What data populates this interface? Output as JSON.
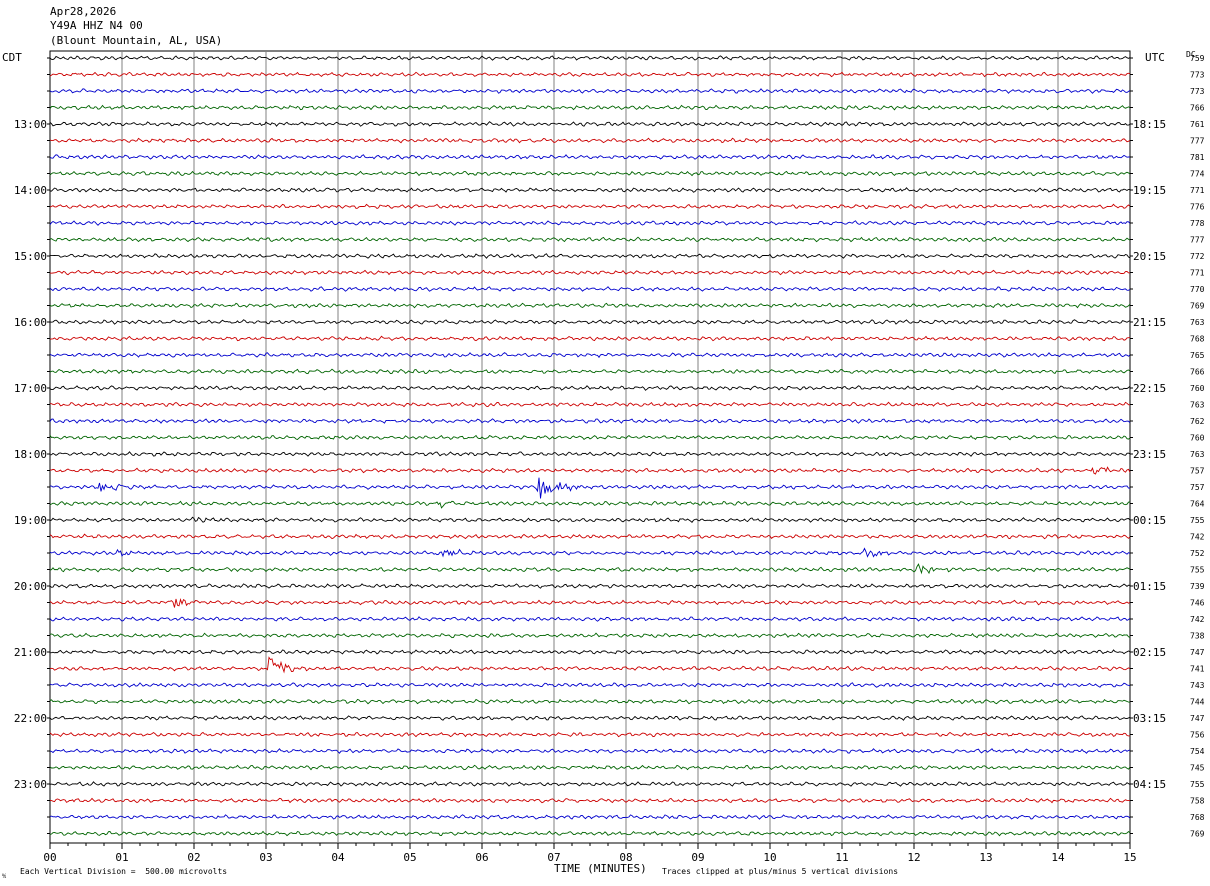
{
  "header": {
    "date": "Apr28,2026",
    "station": "Y49A HHZ N4 00",
    "location": "(Blount Mountain, AL, USA)"
  },
  "left_tz": "CDT",
  "right_tz": "UTC",
  "dc_label": "DC",
  "footer": {
    "scale_note": "Each Vertical Division =  500.00 microvolts",
    "clip_note": "Traces clipped at plus/minus 5 vertical divisions",
    "corner_mark": "⅍"
  },
  "colors": {
    "trace_cycle": [
      "#000000",
      "#cc0000",
      "#0000cc",
      "#006400"
    ],
    "grid": "#808080"
  },
  "chart_data": {
    "type": "line",
    "xlabel": "TIME (MINUTES)",
    "xlim": [
      0,
      15
    ],
    "x_ticks": [
      "00",
      "01",
      "02",
      "03",
      "04",
      "05",
      "06",
      "07",
      "08",
      "09",
      "10",
      "11",
      "12",
      "13",
      "14",
      "15"
    ],
    "left_hour_labels": [
      "13:00",
      "14:00",
      "15:00",
      "16:00",
      "17:00",
      "18:00",
      "19:00",
      "20:00",
      "21:00",
      "22:00",
      "23:00"
    ],
    "right_hour_labels": [
      "18:15",
      "19:15",
      "20:15",
      "21:15",
      "22:15",
      "23:15",
      "00:15",
      "01:15",
      "02:15",
      "03:15",
      "04:15"
    ],
    "dc_values": [
      759,
      773,
      773,
      766,
      761,
      777,
      781,
      774,
      771,
      776,
      778,
      777,
      772,
      771,
      770,
      769,
      763,
      768,
      765,
      766,
      760,
      763,
      762,
      760,
      763,
      757,
      757,
      764,
      755,
      742,
      752,
      755,
      739,
      746,
      742,
      738,
      747,
      741,
      743,
      744,
      747,
      756,
      754,
      745,
      755,
      758,
      768,
      769
    ],
    "events": [
      {
        "trace": 25,
        "minute": 14.5,
        "amp": 0.35
      },
      {
        "trace": 26,
        "minute": 0.7,
        "amp": 0.4
      },
      {
        "trace": 26,
        "minute": 6.8,
        "amp": 1.0
      },
      {
        "trace": 27,
        "minute": 5.4,
        "amp": 0.25
      },
      {
        "trace": 28,
        "minute": 2.0,
        "amp": 0.25
      },
      {
        "trace": 30,
        "minute": 0.95,
        "amp": 0.3
      },
      {
        "trace": 30,
        "minute": 5.4,
        "amp": 0.4
      },
      {
        "trace": 30,
        "minute": 11.3,
        "amp": 0.4
      },
      {
        "trace": 31,
        "minute": 12.0,
        "amp": 0.45
      },
      {
        "trace": 33,
        "minute": 1.7,
        "amp": 0.45
      },
      {
        "trace": 37,
        "minute": 3.05,
        "amp": 1.0
      }
    ]
  }
}
